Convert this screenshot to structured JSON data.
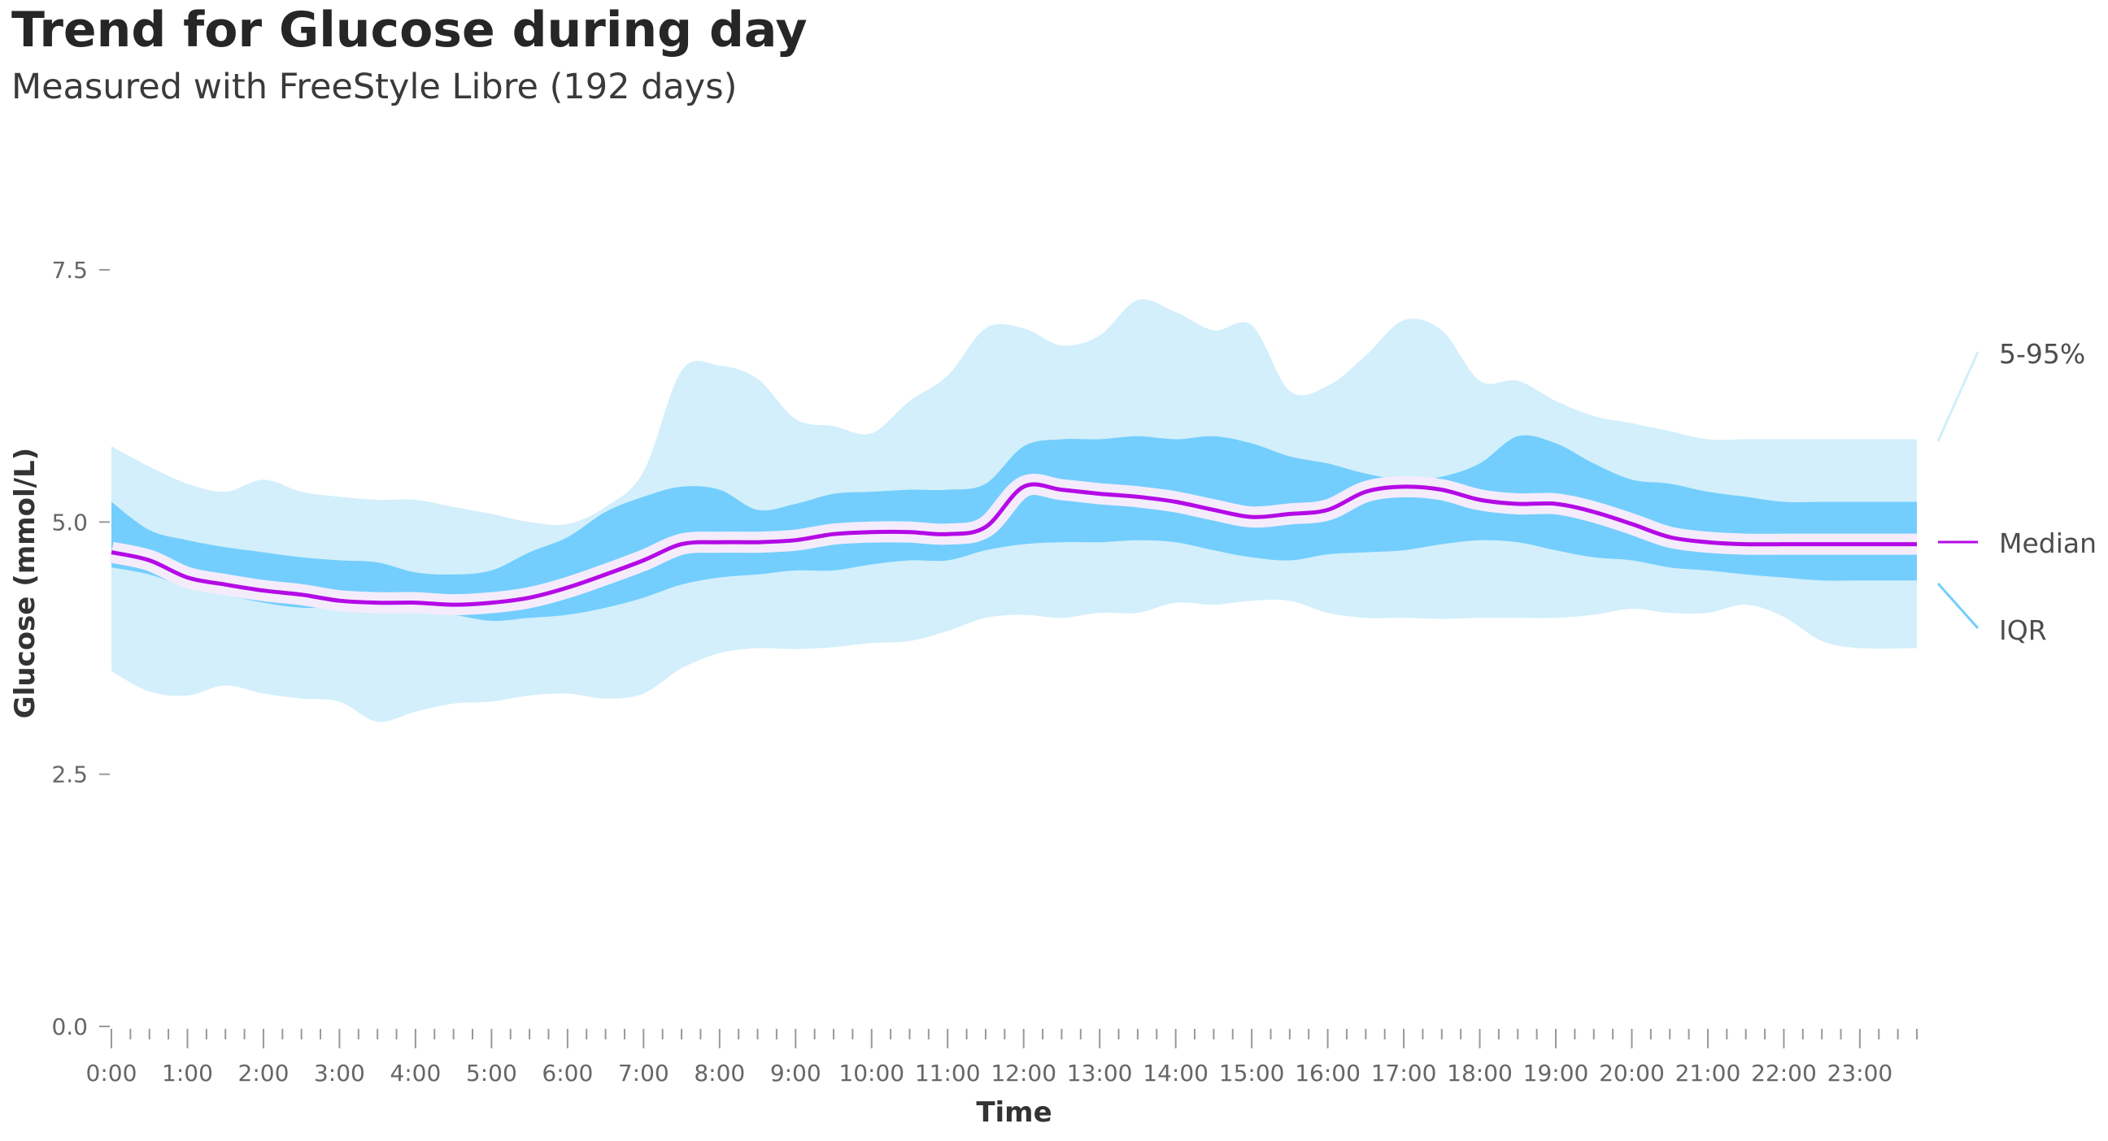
{
  "header": {
    "title": "Trend for Glucose during day",
    "subtitle": "Measured with FreeStyle Libre (192 days)"
  },
  "colors": {
    "band_5_95": "#d2effb",
    "band_iqr": "#73cefd",
    "median_halo": "#f4ecfb",
    "median": "#b40ae6",
    "axis": "#999999"
  },
  "chart_data": {
    "type": "area",
    "title": "Trend for Glucose during day",
    "subtitle": "Measured with FreeStyle Libre (192 days)",
    "xlabel": "Time",
    "ylabel": "Glucose (mmol/L)",
    "ylim": [
      0,
      7.5
    ],
    "xlim": [
      0,
      23.75
    ],
    "yticks": [
      0,
      2.5,
      5,
      7.5
    ],
    "ytick_labels": [
      "0.0",
      "2.5",
      "5.0",
      "7.5"
    ],
    "xticks": [
      0,
      1,
      2,
      3,
      4,
      5,
      6,
      7,
      8,
      9,
      10,
      11,
      12,
      13,
      14,
      15,
      16,
      17,
      18,
      19,
      20,
      21,
      22,
      23
    ],
    "xtick_labels": [
      "0:00",
      "1:00",
      "2:00",
      "3:00",
      "4:00",
      "5:00",
      "6:00",
      "7:00",
      "8:00",
      "9:00",
      "10:00",
      "11:00",
      "12:00",
      "13:00",
      "14:00",
      "15:00",
      "16:00",
      "17:00",
      "18:00",
      "19:00",
      "20:00",
      "21:00",
      "22:00",
      "23:00"
    ],
    "grid": false,
    "legend": {
      "placement": "right",
      "entries": [
        "5-95%",
        "Median",
        "IQR"
      ]
    },
    "x": [
      0,
      0.5,
      1,
      1.5,
      2,
      2.5,
      3,
      3.5,
      4,
      4.5,
      5,
      5.5,
      6,
      6.5,
      7,
      7.5,
      8,
      8.5,
      9,
      9.5,
      10,
      10.5,
      11,
      11.5,
      12,
      12.5,
      13,
      13.5,
      14,
      14.5,
      15,
      15.5,
      16,
      16.5,
      17,
      17.5,
      18,
      18.5,
      19,
      19.5,
      20,
      20.5,
      21,
      21.5,
      22,
      22.5,
      23,
      23.75
    ],
    "series": [
      {
        "name": "5-95%",
        "kind": "band",
        "lower": [
          3.52,
          3.32,
          3.28,
          3.38,
          3.3,
          3.25,
          3.22,
          3.02,
          3.12,
          3.2,
          3.22,
          3.28,
          3.3,
          3.25,
          3.3,
          3.55,
          3.7,
          3.75,
          3.74,
          3.76,
          3.8,
          3.82,
          3.92,
          4.05,
          4.08,
          4.05,
          4.1,
          4.1,
          4.2,
          4.18,
          4.22,
          4.22,
          4.1,
          4.05,
          4.05,
          4.04,
          4.05,
          4.05,
          4.05,
          4.08,
          4.14,
          4.1,
          4.1,
          4.18,
          4.06,
          3.82,
          3.75,
          3.75
        ],
        "upper": [
          5.75,
          5.55,
          5.38,
          5.3,
          5.42,
          5.3,
          5.25,
          5.22,
          5.22,
          5.15,
          5.08,
          5.0,
          4.98,
          5.15,
          5.5,
          6.5,
          6.55,
          6.42,
          6.02,
          5.95,
          5.88,
          6.2,
          6.45,
          6.92,
          6.92,
          6.75,
          6.85,
          7.2,
          7.08,
          6.9,
          6.95,
          6.3,
          6.35,
          6.65,
          7.0,
          6.9,
          6.4,
          6.4,
          6.2,
          6.05,
          5.98,
          5.9,
          5.82,
          5.82,
          5.82,
          5.82,
          5.82,
          5.82
        ]
      },
      {
        "name": "IQR",
        "kind": "band",
        "lower": [
          4.55,
          4.48,
          4.35,
          4.28,
          4.2,
          4.15,
          4.15,
          4.12,
          4.12,
          4.08,
          4.02,
          4.05,
          4.08,
          4.15,
          4.25,
          4.38,
          4.45,
          4.48,
          4.52,
          4.52,
          4.58,
          4.62,
          4.62,
          4.72,
          4.78,
          4.8,
          4.8,
          4.82,
          4.8,
          4.72,
          4.65,
          4.62,
          4.68,
          4.7,
          4.72,
          4.78,
          4.82,
          4.8,
          4.72,
          4.65,
          4.62,
          4.55,
          4.52,
          4.48,
          4.45,
          4.42,
          4.42,
          4.42
        ],
        "upper": [
          5.2,
          4.92,
          4.82,
          4.75,
          4.7,
          4.65,
          4.62,
          4.6,
          4.5,
          4.48,
          4.52,
          4.7,
          4.85,
          5.1,
          5.25,
          5.35,
          5.32,
          5.12,
          5.18,
          5.28,
          5.3,
          5.32,
          5.32,
          5.38,
          5.75,
          5.82,
          5.82,
          5.85,
          5.82,
          5.85,
          5.78,
          5.65,
          5.58,
          5.48,
          5.42,
          5.45,
          5.58,
          5.85,
          5.78,
          5.58,
          5.42,
          5.38,
          5.3,
          5.25,
          5.2,
          5.2,
          5.2,
          5.2
        ]
      },
      {
        "name": "Median",
        "kind": "line",
        "values": [
          4.7,
          4.62,
          4.45,
          4.38,
          4.32,
          4.28,
          4.22,
          4.2,
          4.2,
          4.18,
          4.2,
          4.25,
          4.35,
          4.48,
          4.62,
          4.78,
          4.8,
          4.8,
          4.82,
          4.88,
          4.9,
          4.9,
          4.88,
          4.95,
          5.35,
          5.32,
          5.28,
          5.25,
          5.2,
          5.12,
          5.05,
          5.08,
          5.12,
          5.3,
          5.35,
          5.32,
          5.22,
          5.18,
          5.18,
          5.1,
          4.98,
          4.85,
          4.8,
          4.78,
          4.78,
          4.78,
          4.78,
          4.78
        ]
      }
    ]
  }
}
